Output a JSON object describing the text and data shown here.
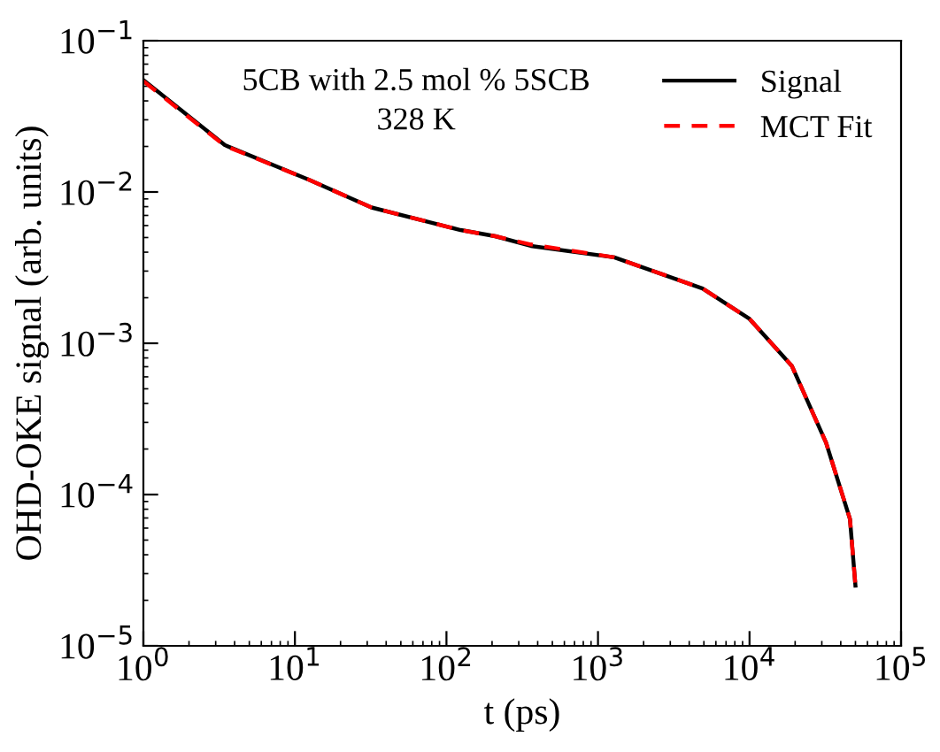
{
  "chart_data": {
    "type": "line",
    "xlabel": "t (ps)",
    "ylabel": "OHD-OKE signal (arb. units)",
    "log": "xy",
    "xlim": [
      1,
      100000
    ],
    "ylim": [
      1e-05,
      0.1
    ],
    "xticks": [
      {
        "value": 1,
        "label": "10$^{0}$"
      },
      {
        "value": 10,
        "label": "10$^{1}$"
      },
      {
        "value": 100,
        "label": "10$^{2}$"
      },
      {
        "value": 1000,
        "label": "10$^{3}$"
      },
      {
        "value": 10000,
        "label": "10$^{4}$"
      },
      {
        "value": 100000,
        "label": "10$^{5}$"
      }
    ],
    "yticks": [
      {
        "value": 1e-05,
        "label": "10$^{−5}$"
      },
      {
        "value": 0.0001,
        "label": "10$^{−4}$"
      },
      {
        "value": 0.001,
        "label": "10$^{−3}$"
      },
      {
        "value": 0.01,
        "label": "10$^{−2}$"
      },
      {
        "value": 0.1,
        "label": "10$^{−1}$"
      }
    ],
    "annotations": [
      "5CB with 2.5 mol % 5SCB",
      "328 K"
    ],
    "legend": "top right",
    "grid": false,
    "x": [
      1,
      3.45,
      12.5,
      32,
      124,
      210,
      360,
      1280,
      4900,
      10000,
      19000,
      32000,
      46000,
      50000
    ],
    "series": [
      {
        "name": "Signal",
        "color": "#000000",
        "line_style": "solid",
        "values": [
          0.055,
          0.0204,
          0.012,
          0.0079,
          0.0056,
          0.0051,
          0.0044,
          0.0037,
          0.0023,
          0.00145,
          0.00071,
          0.00022,
          6.9e-05,
          2.5e-05
        ]
      },
      {
        "name": "MCT Fit",
        "color": "#ff0000",
        "line_style": "dashed",
        "values": [
          0.054,
          0.0202,
          0.012,
          0.0079,
          0.0056,
          0.0051,
          0.0045,
          0.0037,
          0.0023,
          0.00145,
          0.00071,
          0.00022,
          6.9e-05,
          2.5e-05
        ]
      }
    ]
  }
}
